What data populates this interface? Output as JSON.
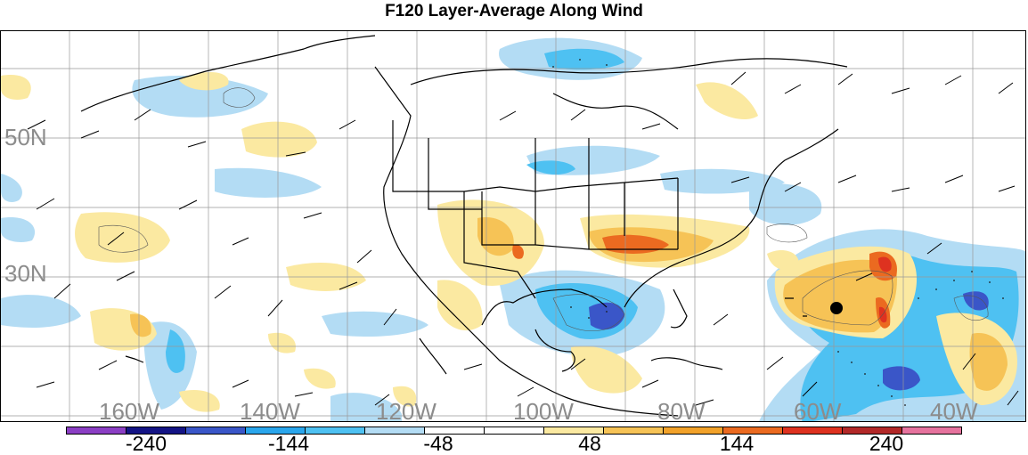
{
  "title": "F120 Layer-Average Along Wind",
  "map": {
    "lat_labels": [
      "50N",
      "30N"
    ],
    "lon_labels": [
      "160W",
      "140W",
      "120W",
      "100W",
      "80W",
      "60W",
      "40W"
    ],
    "storm_marker": "filled-circle"
  },
  "colorbar": {
    "colors": [
      "#8b3fc4",
      "#141485",
      "#3a56c8",
      "#2aa6ec",
      "#4ec1f2",
      "#b3dcf4",
      "#ffffff",
      "#ffffff",
      "#fbe9a1",
      "#f6c356",
      "#f2a22a",
      "#eb6a20",
      "#de3220",
      "#b22828",
      "#e6739e"
    ],
    "tick_labels": [
      "-240",
      "-144",
      "-48",
      "48",
      "144",
      "240"
    ]
  },
  "colors": {
    "negative_light": "#b3dcf4",
    "negative_mid": "#4ec1f2",
    "negative_strong": "#3a56c8",
    "positive_light": "#fbe9a1",
    "positive_mid": "#f6c356",
    "positive_strong": "#eb6a20",
    "positive_extreme": "#de3220",
    "label_gray": "#8c8c8c"
  }
}
